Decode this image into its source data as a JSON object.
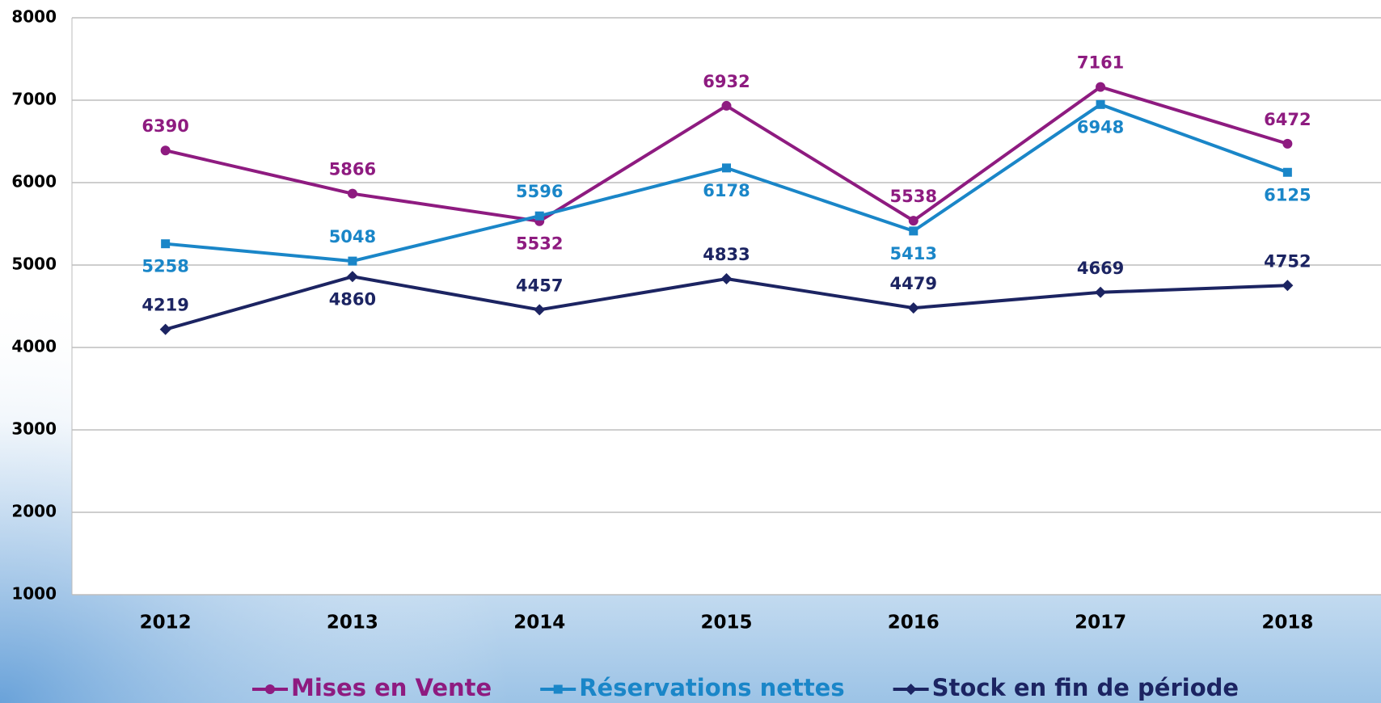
{
  "chart_data": {
    "type": "line",
    "categories": [
      "2012",
      "2013",
      "2014",
      "2015",
      "2016",
      "2017",
      "2018"
    ],
    "series": [
      {
        "name": "Mises en Vente",
        "color": "#8e1b80",
        "marker": "circle",
        "values": [
          6390,
          5866,
          5532,
          6932,
          5538,
          7161,
          6472
        ]
      },
      {
        "name": "Réservations nettes",
        "color": "#1a86c8",
        "marker": "square",
        "values": [
          5258,
          5048,
          5596,
          6178,
          5413,
          6948,
          6125
        ]
      },
      {
        "name": "Stock en fin de période",
        "color": "#1c2462",
        "marker": "diamond",
        "values": [
          4219,
          4860,
          4457,
          4833,
          4479,
          4669,
          4752
        ]
      }
    ],
    "ylim": [
      1000,
      8000
    ],
    "yticks": [
      1000,
      2000,
      3000,
      4000,
      5000,
      6000,
      7000,
      8000
    ],
    "grid": true,
    "legend": "bottom"
  }
}
